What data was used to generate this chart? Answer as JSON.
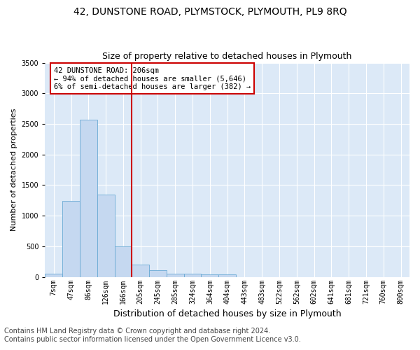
{
  "title": "42, DUNSTONE ROAD, PLYMSTOCK, PLYMOUTH, PL9 8RQ",
  "subtitle": "Size of property relative to detached houses in Plymouth",
  "xlabel": "Distribution of detached houses by size in Plymouth",
  "ylabel": "Number of detached properties",
  "footer1": "Contains HM Land Registry data © Crown copyright and database right 2024.",
  "footer2": "Contains public sector information licensed under the Open Government Licence v3.0.",
  "bar_labels": [
    "7sqm",
    "47sqm",
    "86sqm",
    "126sqm",
    "166sqm",
    "205sqm",
    "245sqm",
    "285sqm",
    "324sqm",
    "364sqm",
    "404sqm",
    "443sqm",
    "483sqm",
    "522sqm",
    "562sqm",
    "602sqm",
    "641sqm",
    "681sqm",
    "721sqm",
    "760sqm",
    "800sqm"
  ],
  "bar_values": [
    50,
    1240,
    2570,
    1340,
    500,
    200,
    110,
    50,
    50,
    40,
    40,
    0,
    0,
    0,
    0,
    0,
    0,
    0,
    0,
    0,
    0
  ],
  "bar_color": "#c5d8f0",
  "bar_edgecolor": "#6aaad4",
  "bar_width": 1.0,
  "vline_index": 5,
  "vline_color": "#cc0000",
  "annotation_text_line1": "42 DUNSTONE ROAD: 206sqm",
  "annotation_text_line2": "← 94% of detached houses are smaller (5,646)",
  "annotation_text_line3": "6% of semi-detached houses are larger (382) →",
  "annotation_box_edgecolor": "#cc0000",
  "ylim": [
    0,
    3500
  ],
  "xlim": [
    -0.5,
    20.5
  ],
  "plot_bg_color": "#dce9f7",
  "grid_color": "#ffffff",
  "title_fontsize": 10,
  "subtitle_fontsize": 9,
  "xlabel_fontsize": 9,
  "ylabel_fontsize": 8,
  "tick_fontsize": 7,
  "footer_fontsize": 7,
  "ann_fontsize": 7.5
}
